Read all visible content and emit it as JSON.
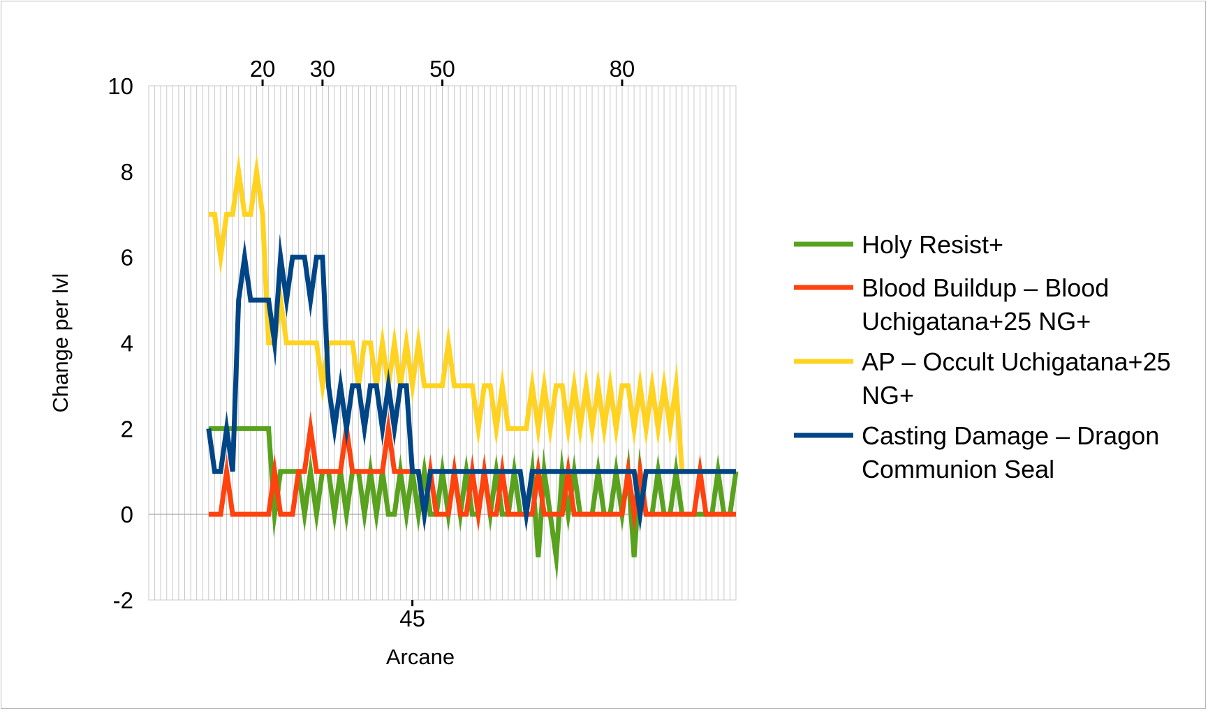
{
  "chart_data": {
    "type": "line",
    "title": "",
    "xlabel": "Arcane",
    "ylabel": "Change per lvl",
    "xlim": [
      1,
      99
    ],
    "ylim": [
      -2,
      10
    ],
    "y_ticks": [
      -2,
      0,
      2,
      4,
      6,
      8,
      10
    ],
    "x_top_ticks": [
      20,
      30,
      50,
      80
    ],
    "x_bottom_ticks": [
      45
    ],
    "grid": {
      "x_minor": true,
      "y_major": false
    },
    "legend_position": "right",
    "x": [
      11,
      12,
      13,
      14,
      15,
      16,
      17,
      18,
      19,
      20,
      21,
      22,
      23,
      24,
      25,
      26,
      27,
      28,
      29,
      30,
      31,
      32,
      33,
      34,
      35,
      36,
      37,
      38,
      39,
      40,
      41,
      42,
      43,
      44,
      45,
      46,
      47,
      48,
      49,
      50,
      51,
      52,
      53,
      54,
      55,
      56,
      57,
      58,
      59,
      60,
      61,
      62,
      63,
      64,
      65,
      66,
      67,
      68,
      69,
      70,
      71,
      72,
      73,
      74,
      75,
      76,
      77,
      78,
      79,
      80,
      81,
      82,
      83,
      84,
      85,
      86,
      87,
      88,
      89,
      90,
      91,
      92,
      93,
      94,
      95,
      96,
      97,
      98,
      99
    ],
    "series": [
      {
        "name": "Holy Resist+",
        "color": "#58a21e",
        "values": [
          2,
          2,
          2,
          2,
          2,
          2,
          2,
          2,
          2,
          2,
          2,
          0,
          1,
          1,
          1,
          1,
          0,
          1,
          0,
          1,
          1,
          0,
          1,
          0,
          1,
          1,
          0,
          1,
          0,
          1,
          0,
          0,
          1,
          0,
          1,
          0,
          1,
          0,
          0,
          1,
          0,
          1,
          0,
          1,
          0,
          0,
          1,
          0,
          1,
          0,
          0,
          1,
          0,
          0,
          1,
          -1,
          1,
          0,
          -1,
          1,
          0,
          1,
          0,
          0,
          0,
          1,
          0,
          0,
          1,
          0,
          1,
          -1,
          1,
          0,
          0,
          1,
          0,
          0,
          1,
          0,
          0,
          0,
          0,
          0,
          0,
          1,
          0,
          0,
          1
        ]
      },
      {
        "name": "Blood Buildup – Blood Uchigatana+25 NG+",
        "color": "#ff420e",
        "values": [
          0,
          0,
          0,
          1,
          0,
          0,
          0,
          0,
          0,
          0,
          0,
          1,
          0,
          0,
          0,
          1,
          1,
          2,
          1,
          1,
          1,
          1,
          1,
          2,
          1,
          1,
          1,
          1,
          1,
          1,
          2,
          1,
          1,
          1,
          1,
          1,
          0,
          1,
          0,
          0,
          0,
          1,
          0,
          0,
          1,
          0,
          1,
          0,
          0,
          1,
          0,
          0,
          0,
          0,
          0,
          1,
          0,
          0,
          0,
          0,
          1,
          0,
          0,
          0,
          0,
          0,
          0,
          0,
          0,
          0,
          1,
          0,
          1,
          0,
          0,
          0,
          0,
          0,
          0,
          0,
          0,
          0,
          1,
          0,
          0,
          0,
          0,
          0,
          0
        ]
      },
      {
        "name": "AP – Occult Uchigatana+25 NG+",
        "color": "#ffd320",
        "values": [
          7,
          7,
          6,
          7,
          7,
          8,
          7,
          7,
          8,
          7,
          4,
          4,
          5,
          4,
          4,
          4,
          4,
          4,
          4,
          3,
          4,
          4,
          4,
          4,
          4,
          3,
          4,
          4,
          3,
          4,
          3,
          4,
          3,
          4,
          3,
          4,
          3,
          3,
          3,
          3,
          4,
          3,
          3,
          3,
          3,
          2,
          3,
          3,
          2,
          3,
          2,
          2,
          2,
          2,
          3,
          2,
          3,
          2,
          3,
          3,
          2,
          3,
          2,
          3,
          2,
          3,
          2,
          3,
          2,
          3,
          3,
          2,
          3,
          2,
          3,
          2,
          3,
          2,
          3,
          1,
          1,
          1,
          1,
          1,
          1,
          1,
          1,
          1,
          1
        ]
      },
      {
        "name": "Casting Damage – Dragon Communion Seal",
        "color": "#004586",
        "values": [
          2,
          1,
          1,
          2,
          1,
          5,
          6,
          5,
          5,
          5,
          5,
          4,
          6,
          5,
          6,
          6,
          6,
          5,
          6,
          6,
          3,
          2,
          3,
          2,
          3,
          3,
          2,
          3,
          3,
          2,
          3,
          2,
          3,
          3,
          1,
          1,
          0,
          1,
          1,
          1,
          1,
          1,
          1,
          1,
          1,
          1,
          1,
          1,
          1,
          1,
          1,
          1,
          1,
          0,
          1,
          1,
          1,
          1,
          1,
          1,
          1,
          1,
          1,
          1,
          1,
          1,
          1,
          1,
          1,
          1,
          1,
          1,
          0,
          1,
          1,
          1,
          1,
          1,
          1,
          1,
          1,
          1,
          1,
          1,
          1,
          1,
          1,
          1,
          1
        ]
      }
    ]
  }
}
